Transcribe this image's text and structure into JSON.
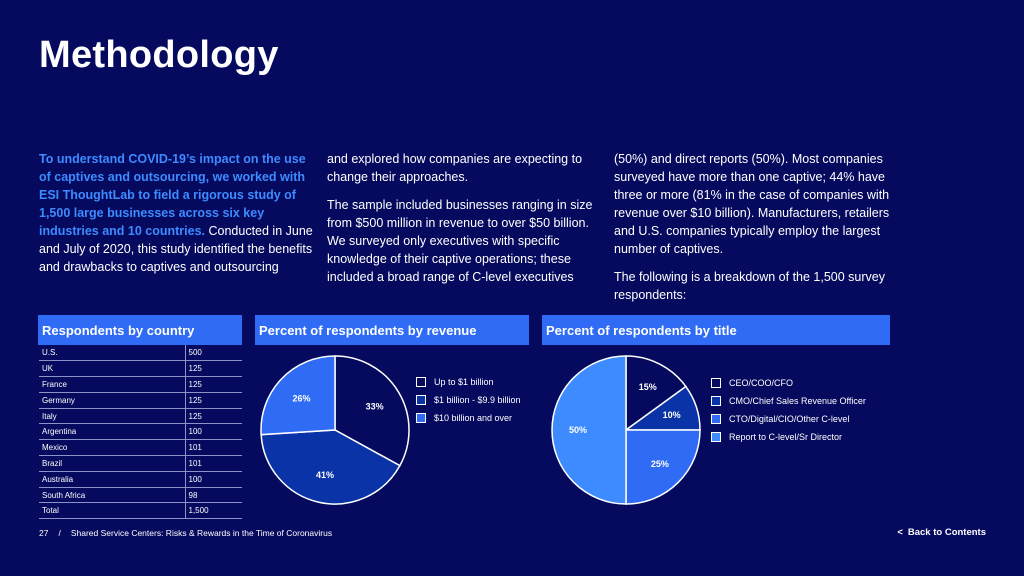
{
  "page": {
    "title": "Methodology"
  },
  "body": {
    "col1_highlight": "To understand COVID-19’s impact on the use of captives and outsourcing, we worked with ESI ThoughtLab to field a rigorous study of 1,500 large businesses across six key industries and 10 countries.",
    "col1_rest": " Conducted in June and July of 2020, this study identified the benefits and drawbacks to captives and outsourcing",
    "col2_p1": "and explored how companies are expecting to change their approaches.",
    "col2_p2": "The sample included businesses ranging in size from $500 million in revenue to over $50 billion. We surveyed only executives with specific knowledge of their captive operations; these included a broad range of C-level executives",
    "col3_p1": "(50%) and direct reports (50%). Most companies surveyed have more than one captive; 44% have three or more (81% in the case of companies with revenue over $10 billion). Manufacturers, retailers and U.S. companies typically employ the largest number of captives.",
    "col3_p2": "The following is a breakdown of the 1,500 survey respondents:"
  },
  "panels": {
    "country_title": "Respondents by country",
    "revenue_title": "Percent of respondents by revenue",
    "title_title": "Percent of respondents by title"
  },
  "country_table": [
    {
      "country": "U.S.",
      "value": "500"
    },
    {
      "country": "UK",
      "value": "125"
    },
    {
      "country": "France",
      "value": "125"
    },
    {
      "country": "Germany",
      "value": "125"
    },
    {
      "country": "Italy",
      "value": "125"
    },
    {
      "country": "Argentina",
      "value": "100"
    },
    {
      "country": "Mexico",
      "value": "101"
    },
    {
      "country": "Brazil",
      "value": "101"
    },
    {
      "country": "Australia",
      "value": "100"
    },
    {
      "country": "South Africa",
      "value": "98"
    },
    {
      "country": "Total",
      "value": "1,500"
    }
  ],
  "chart_data": [
    {
      "type": "pie",
      "title": "Percent of respondents by revenue",
      "categories": [
        "Up to $1 billion",
        "$1 billion - $9.9 billion",
        "$10 billion and over"
      ],
      "values": [
        33,
        41,
        26
      ],
      "labels": [
        "33%",
        "41%",
        "26%"
      ],
      "colors": [
        "#050A5E",
        "#0A33A8",
        "#2F6BF5"
      ],
      "legend_position": "right"
    },
    {
      "type": "pie",
      "title": "Percent of respondents by title",
      "categories": [
        "CEO/COO/CFO",
        "CMO/Chief Sales Revenue Officer",
        "CTO/Digital/CIO/Other C-level",
        "Report to C-level/Sr Director"
      ],
      "values": [
        15,
        10,
        25,
        50
      ],
      "labels": [
        "15%",
        "10%",
        "25%",
        "50%"
      ],
      "colors": [
        "#050A5E",
        "#0A33A8",
        "#2F6BF5",
        "#3D8BFF"
      ],
      "legend_position": "right"
    }
  ],
  "footer": {
    "page_number": "27",
    "separator": "/",
    "doc_title": "Shared Service Centers: Risks & Rewards in the Time of Coronavirus",
    "back_chevron": "<",
    "back_label": "Back to Contents"
  }
}
